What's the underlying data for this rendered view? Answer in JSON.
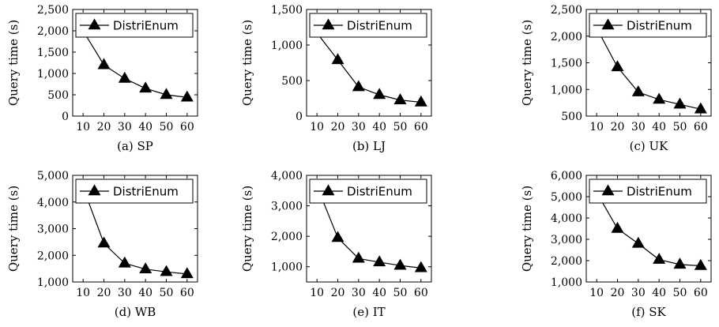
{
  "chart_data": [
    {
      "type": "line",
      "caption": "(a) SP",
      "ylabel": "Query time (s)",
      "x": [
        10,
        20,
        30,
        40,
        50,
        60
      ],
      "xticks": [
        "10",
        "20",
        "30",
        "40",
        "50",
        "60"
      ],
      "ylim": [
        0,
        2500
      ],
      "yticks": [
        0,
        500,
        1000,
        1500,
        2000,
        2500
      ],
      "ytick_labels": [
        "0",
        "500",
        "1,000",
        "1,500",
        "2,000",
        "2,500"
      ],
      "legend": "top-right",
      "series": [
        {
          "name": "DistriEnum",
          "values": [
            2000,
            1200,
            880,
            650,
            500,
            440
          ]
        }
      ]
    },
    {
      "type": "line",
      "caption": "(b) LJ",
      "ylabel": "Query time (s)",
      "x": [
        10,
        20,
        30,
        40,
        50,
        60
      ],
      "xticks": [
        "10",
        "20",
        "30",
        "40",
        "50",
        "60"
      ],
      "ylim": [
        0,
        1500
      ],
      "yticks": [
        0,
        500,
        1000,
        1500
      ],
      "ytick_labels": [
        "0",
        "500",
        "1,000",
        "1,500"
      ],
      "legend": "top-right",
      "series": [
        {
          "name": "DistriEnum",
          "values": [
            1170,
            790,
            410,
            300,
            225,
            195
          ]
        }
      ]
    },
    {
      "type": "line",
      "caption": "(c) UK",
      "ylabel": "Query time (s)",
      "x": [
        10,
        20,
        30,
        40,
        50,
        60
      ],
      "xticks": [
        "10",
        "20",
        "30",
        "40",
        "50",
        "60"
      ],
      "ylim": [
        500,
        2500
      ],
      "yticks": [
        500,
        1000,
        1500,
        2000,
        2500
      ],
      "ytick_labels": [
        "500",
        "1,000",
        "1,500",
        "2,000",
        "2,500"
      ],
      "legend": "top-right",
      "series": [
        {
          "name": "DistriEnum",
          "values": [
            2150,
            1420,
            950,
            810,
            720,
            630
          ]
        }
      ]
    },
    {
      "type": "line",
      "caption": "(d) WB",
      "ylabel": "Query time (s)",
      "x": [
        10,
        20,
        30,
        40,
        50,
        60
      ],
      "xticks": [
        "10",
        "20",
        "30",
        "40",
        "50",
        "60"
      ],
      "ylim": [
        1000,
        5000
      ],
      "yticks": [
        1000,
        2000,
        3000,
        4000,
        5000
      ],
      "ytick_labels": [
        "1,000",
        "2,000",
        "3,000",
        "4,000",
        "5,000"
      ],
      "legend": "top-right",
      "series": [
        {
          "name": "DistriEnum",
          "values": [
            4550,
            2450,
            1700,
            1480,
            1380,
            1300
          ]
        }
      ]
    },
    {
      "type": "line",
      "caption": "(e) IT",
      "ylabel": "Query time (s)",
      "x": [
        10,
        20,
        30,
        40,
        50,
        60
      ],
      "xticks": [
        "10",
        "20",
        "30",
        "40",
        "50",
        "60"
      ],
      "ylim": [
        500,
        4000
      ],
      "yticks": [
        1000,
        2000,
        3000,
        4000
      ],
      "ytick_labels": [
        "1,000",
        "2,000",
        "3,000",
        "4,000"
      ],
      "legend": "top-right",
      "series": [
        {
          "name": "DistriEnum",
          "values": [
            3650,
            1950,
            1270,
            1150,
            1040,
            960
          ]
        }
      ]
    },
    {
      "type": "line",
      "caption": "(f) SK",
      "ylabel": "Query time (s)",
      "x": [
        10,
        20,
        30,
        40,
        50,
        60
      ],
      "xticks": [
        "10",
        "20",
        "30",
        "40",
        "50",
        "60"
      ],
      "ylim": [
        1000,
        6000
      ],
      "yticks": [
        1000,
        2000,
        3000,
        4000,
        5000,
        6000
      ],
      "ytick_labels": [
        "1,000",
        "2,000",
        "3,000",
        "4,000",
        "5,000",
        "6,000"
      ],
      "legend": "top-right",
      "series": [
        {
          "name": "DistriEnum",
          "values": [
            5200,
            3500,
            2800,
            2050,
            1820,
            1760
          ]
        }
      ]
    }
  ]
}
